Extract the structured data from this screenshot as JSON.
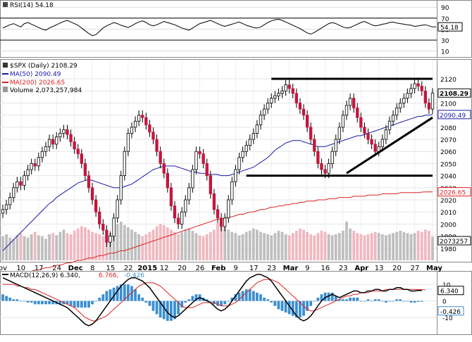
{
  "chart_data": [
    {
      "type": "line",
      "panel": "rsi",
      "legend": {
        "name": "RSI(14)",
        "value": "54.18"
      },
      "yticks": [
        "90",
        "70",
        "50",
        "30",
        "10"
      ],
      "tick_values": [
        90,
        70,
        50,
        30,
        10
      ],
      "ylim": [
        3,
        98
      ],
      "reference_lines": [
        70,
        30
      ],
      "last_value_label": "54.18",
      "last_value": 54.18,
      "values": [
        52,
        55,
        58,
        60,
        57,
        54,
        60,
        62,
        59,
        56,
        53,
        50,
        48,
        52,
        55,
        58,
        61,
        64,
        66,
        63,
        60,
        57,
        52,
        47,
        42,
        38,
        40,
        46,
        52,
        56,
        59,
        62,
        60,
        57,
        55,
        53,
        56,
        60,
        63,
        65,
        62,
        58,
        56,
        58,
        61,
        64,
        62,
        60,
        58,
        55,
        52,
        50,
        48,
        52,
        56,
        60,
        62,
        64,
        66,
        63,
        60,
        57,
        55,
        57,
        59,
        61,
        63,
        60,
        57,
        55,
        53,
        52,
        54,
        58,
        62,
        65,
        67,
        68,
        66,
        63,
        60,
        57,
        54,
        51,
        47,
        43,
        41,
        44,
        48,
        52,
        56,
        60,
        62,
        60,
        57,
        54,
        52,
        53,
        56,
        59,
        62,
        64,
        61,
        58,
        56,
        57,
        59,
        60,
        62,
        63,
        61,
        60,
        59,
        58,
        57,
        55,
        56,
        57,
        58,
        56,
        54,
        54.18
      ]
    },
    {
      "type": "candlestick",
      "panel": "price",
      "legend": [
        {
          "name": "$SPX (Daily)",
          "value": "2108.29"
        },
        {
          "name": "MA(50)",
          "value": "2090.49"
        },
        {
          "name": "MA(200)",
          "value": "2026.65"
        },
        {
          "name": "Volume",
          "value": "2,073,257,984"
        }
      ],
      "yticks": [
        "2120",
        "2110",
        "2100",
        "2090",
        "2080",
        "2070",
        "2060",
        "2050",
        "2040",
        "2030",
        "2020",
        "2010",
        "2000",
        "1990",
        "1980"
      ],
      "tick_values": [
        2120,
        2110,
        2100,
        2090,
        2080,
        2070,
        2060,
        2050,
        2040,
        2030,
        2020,
        2010,
        2000,
        1990,
        1980
      ],
      "ylim": [
        1970,
        2127
      ],
      "last_value_labels": [
        "2108.29",
        "2090.49",
        "2026.65",
        "2073257"
      ],
      "last_values": [
        2108.29,
        2090.49,
        2026.65,
        2073257
      ],
      "xticks": [
        "ov",
        "10",
        "17",
        "24",
        "Dec",
        "8",
        "15",
        "22",
        "2015",
        "12",
        "20",
        "26",
        "Feb",
        "9",
        "17",
        "23",
        "Mar",
        "9",
        "16",
        "23",
        "Apr",
        "13",
        "20",
        "27",
        "May"
      ],
      "xtick_bars": [
        0,
        5,
        10,
        15,
        20,
        25,
        30,
        35,
        40,
        45,
        50,
        55,
        60,
        65,
        70,
        75,
        80,
        85,
        90,
        95,
        100,
        105,
        110,
        115,
        120
      ],
      "close": [
        2012,
        2016,
        2022,
        2030,
        2035,
        2032,
        2040,
        2045,
        2050,
        2048,
        2055,
        2060,
        2064,
        2070,
        2066,
        2072,
        2075,
        2078,
        2074,
        2068,
        2062,
        2058,
        2050,
        2040,
        2030,
        2020,
        2010,
        2000,
        1995,
        1985,
        1990,
        2005,
        2020,
        2040,
        2060,
        2075,
        2080,
        2085,
        2090,
        2088,
        2082,
        2076,
        2070,
        2060,
        2050,
        2042,
        2030,
        2015,
        2005,
        2000,
        2010,
        2020,
        2030,
        2045,
        2060,
        2058,
        2050,
        2040,
        2025,
        2012,
        2005,
        1998,
        2005,
        2020,
        2035,
        2045,
        2055,
        2060,
        2065,
        2070,
        2075,
        2082,
        2090,
        2095,
        2100,
        2104,
        2106,
        2108,
        2110,
        2115,
        2112,
        2108,
        2100,
        2095,
        2090,
        2080,
        2070,
        2060,
        2050,
        2045,
        2042,
        2050,
        2060,
        2070,
        2080,
        2090,
        2098,
        2104,
        2096,
        2088,
        2080,
        2075,
        2070,
        2066,
        2060,
        2064,
        2070,
        2078,
        2085,
        2090,
        2096,
        2100,
        2104,
        2108,
        2112,
        2116,
        2114,
        2110,
        2100,
        2095,
        2108.29
      ],
      "ma50": [
        1978,
        1981,
        1984,
        1987,
        1990,
        1993,
        1996,
        1999,
        2002,
        2005,
        2008,
        2011,
        2014,
        2017,
        2019,
        2022,
        2024,
        2026,
        2028,
        2030,
        2032,
        2034,
        2035,
        2036,
        2037,
        2036,
        2035,
        2034,
        2033,
        2032,
        2031,
        2030,
        2030,
        2030,
        2031,
        2032,
        2033,
        2035,
        2037,
        2039,
        2041,
        2043,
        2045,
        2046,
        2047,
        2048,
        2048,
        2048,
        2048,
        2047,
        2046,
        2045,
        2044,
        2043,
        2043,
        2042,
        2042,
        2041,
        2041,
        2041,
        2041,
        2040,
        2040,
        2040,
        2041,
        2042,
        2043,
        2044,
        2045,
        2046,
        2047,
        2049,
        2051,
        2053,
        2055,
        2058,
        2061,
        2063,
        2065,
        2067,
        2068,
        2069,
        2069,
        2069,
        2068,
        2067,
        2066,
        2065,
        2064,
        2064,
        2064,
        2065,
        2066,
        2067,
        2068,
        2069,
        2070,
        2071,
        2072,
        2073,
        2073,
        2074,
        2075,
        2076,
        2077,
        2078,
        2079,
        2080,
        2081,
        2082,
        2083,
        2084,
        2085,
        2086,
        2087,
        2088,
        2089,
        2089,
        2090,
        2090,
        2090.49
      ],
      "ma200": [
        1955,
        1956,
        1957,
        1957,
        1958,
        1959,
        1960,
        1960,
        1961,
        1962,
        1962,
        1963,
        1964,
        1964,
        1965,
        1966,
        1966,
        1967,
        1968,
        1968,
        1969,
        1970,
        1970,
        1971,
        1972,
        1972,
        1973,
        1974,
        1974,
        1975,
        1976,
        1976,
        1977,
        1978,
        1978,
        1979,
        1980,
        1981,
        1982,
        1983,
        1984,
        1985,
        1986,
        1987,
        1988,
        1989,
        1990,
        1991,
        1992,
        1993,
        1994,
        1995,
        1996,
        1997,
        1998,
        1999,
        2000,
        2001,
        2002,
        2003,
        2004,
        2004,
        2005,
        2006,
        2006,
        2007,
        2008,
        2008,
        2009,
        2010,
        2010,
        2011,
        2012,
        2012,
        2013,
        2014,
        2014,
        2015,
        2015,
        2016,
        2016,
        2017,
        2017,
        2018,
        2018,
        2019,
        2019,
        2019,
        2020,
        2020,
        2020,
        2021,
        2021,
        2021,
        2022,
        2022,
        2022,
        2022,
        2023,
        2023,
        2023,
        2023,
        2024,
        2024,
        2024,
        2024,
        2025,
        2025,
        2025,
        2025,
        2025,
        2026,
        2026,
        2026,
        2026,
        2026,
        2026,
        2026.4,
        2026.5,
        2026.6,
        2026.65
      ],
      "volume": [
        2100,
        2300,
        2000,
        1900,
        2200,
        2400,
        2100,
        2000,
        2300,
        2500,
        2200,
        2100,
        1900,
        2300,
        2400,
        2200,
        2500,
        2700,
        2400,
        2300,
        2600,
        2800,
        3000,
        2900,
        2700,
        2500,
        2400,
        2300,
        2100,
        2000,
        2400,
        2800,
        3200,
        3400,
        3100,
        2900,
        2700,
        2500,
        2300,
        2100,
        2300,
        2500,
        2700,
        3000,
        3200,
        3100,
        2900,
        2700,
        2500,
        2300,
        2500,
        2700,
        2800,
        2600,
        2400,
        2200,
        2100,
        2300,
        2500,
        2700,
        3300,
        3100,
        2900,
        2700,
        2500,
        2400,
        2200,
        2300,
        2500,
        2600,
        2800,
        2700,
        2500,
        2400,
        2300,
        2200,
        2400,
        2600,
        2500,
        2300,
        2200,
        2400,
        2600,
        2800,
        2700,
        2500,
        2300,
        2200,
        2400,
        2600,
        2500,
        2300,
        2200,
        2300,
        2400,
        2600,
        3400,
        2800,
        2600,
        2400,
        2300,
        2200,
        2300,
        2400,
        2500,
        2400,
        2300,
        2200,
        2300,
        2400,
        2500,
        2600,
        2500,
        2400,
        2300,
        2400,
        2600,
        2500,
        2700,
        2600,
        2073
      ],
      "trendlines": [
        {
          "from": [
            75,
            2120
          ],
          "to": [
            120,
            2120
          ]
        },
        {
          "from": [
            68,
            2040
          ],
          "to": [
            120,
            2040
          ]
        },
        {
          "from": [
            96,
            2042
          ],
          "to": [
            120,
            2088
          ]
        }
      ]
    },
    {
      "type": "line",
      "panel": "macd",
      "legend": {
        "name": "MACD(12,26,9)",
        "values": [
          "6.340",
          "6.766",
          "-0.426"
        ]
      },
      "yticks": [
        "10",
        "0",
        "-10"
      ],
      "tick_values": [
        10,
        0,
        -10
      ],
      "ylim": [
        -18,
        16
      ],
      "last_value_labels": [
        "6.340",
        "-0.426"
      ],
      "last_values": [
        6.34,
        -0.426
      ],
      "macd": [
        14,
        13,
        12,
        11,
        10,
        9,
        8,
        7,
        6,
        5,
        4,
        3,
        2,
        1,
        0,
        -1,
        -2,
        -3,
        -4,
        -6,
        -8,
        -10,
        -12,
        -14,
        -15,
        -14,
        -12,
        -9,
        -6,
        -3,
        0,
        3,
        6,
        9,
        11,
        13,
        14,
        14,
        13,
        12,
        10,
        8,
        5,
        2,
        -1,
        -4,
        -7,
        -9,
        -10,
        -9,
        -7,
        -5,
        -3,
        -1,
        1,
        2,
        1,
        0,
        -1,
        -3,
        -5,
        -6,
        -5,
        -3,
        0,
        3,
        6,
        9,
        12,
        14,
        15,
        16,
        16,
        15,
        14,
        12,
        9,
        6,
        3,
        0,
        -3,
        -6,
        -9,
        -11,
        -12,
        -11,
        -9,
        -6,
        -3,
        0,
        2,
        3,
        4,
        3,
        2,
        3,
        4,
        5,
        6,
        6,
        5,
        5,
        6,
        6,
        7,
        7,
        6,
        6,
        7,
        7,
        8,
        8,
        7,
        7,
        6,
        6,
        6.3,
        6.34
      ],
      "signal": [
        10,
        10,
        10,
        10,
        9,
        9,
        8,
        8,
        7,
        7,
        6,
        5,
        4,
        3,
        2,
        1,
        0,
        -1,
        -2,
        -3,
        -4,
        -6,
        -8,
        -10,
        -11,
        -12,
        -12,
        -11,
        -10,
        -9,
        -7,
        -5,
        -3,
        -1,
        1,
        3,
        5,
        7,
        9,
        10,
        11,
        11,
        11,
        10,
        9,
        7,
        5,
        3,
        1,
        -1,
        -3,
        -4,
        -4,
        -4,
        -3,
        -2,
        -1,
        -1,
        -1,
        -1,
        -2,
        -3,
        -3,
        -3,
        -2,
        -1,
        1,
        3,
        5,
        7,
        9,
        11,
        12,
        13,
        13,
        13,
        12,
        11,
        9,
        7,
        5,
        3,
        1,
        -1,
        -3,
        -5,
        -6,
        -6,
        -5,
        -4,
        -3,
        -2,
        -1,
        0,
        1,
        2,
        3,
        3,
        4,
        4,
        5,
        5,
        5,
        6,
        6,
        6,
        6,
        7,
        7,
        7,
        7,
        7,
        7,
        7,
        7,
        7,
        6.9,
        6.8,
        6.766
      ]
    }
  ]
}
